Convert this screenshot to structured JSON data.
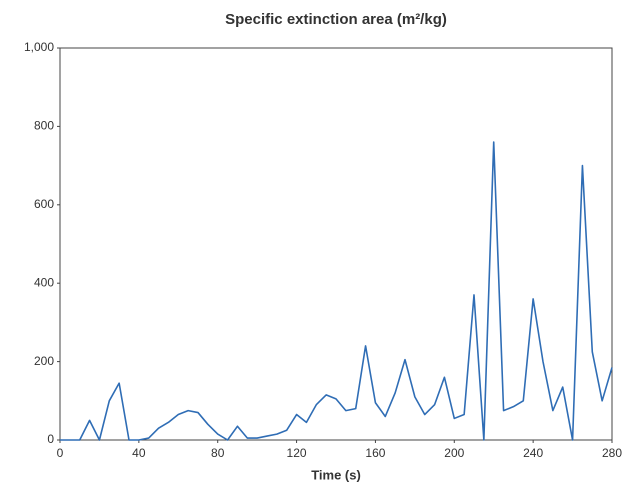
{
  "chart_data": {
    "type": "line",
    "title": "Specific extinction area (m²/kg)",
    "x_label": "Time (s)",
    "x": [
      0,
      10,
      15,
      20,
      25,
      30,
      35,
      40,
      45,
      50,
      55,
      60,
      65,
      70,
      75,
      80,
      85,
      90,
      95,
      100,
      105,
      110,
      115,
      120,
      125,
      130,
      135,
      140,
      145,
      150,
      155,
      160,
      165,
      170,
      175,
      180,
      185,
      190,
      195,
      200,
      205,
      210,
      215,
      220,
      225,
      230,
      235,
      240,
      245,
      250,
      255,
      260,
      265,
      270,
      275,
      280
    ],
    "values": [
      0,
      0,
      50,
      0,
      100,
      145,
      0,
      0,
      5,
      30,
      45,
      65,
      75,
      70,
      40,
      15,
      0,
      35,
      5,
      5,
      10,
      15,
      25,
      65,
      45,
      90,
      115,
      105,
      75,
      80,
      240,
      95,
      60,
      120,
      205,
      110,
      65,
      90,
      160,
      55,
      65,
      370,
      0,
      760,
      75,
      85,
      100,
      360,
      200,
      75,
      135,
      0,
      700,
      225,
      100,
      185
    ],
    "color": "#2f6db5",
    "xlim": [
      0,
      280
    ],
    "xticks": [
      0,
      40,
      80,
      120,
      160,
      200,
      240,
      280
    ],
    "ylim": [
      0,
      1000
    ],
    "yticks": [
      0,
      200,
      400,
      600,
      800,
      {
        "value": 1000,
        "label": "1,000"
      }
    ]
  }
}
